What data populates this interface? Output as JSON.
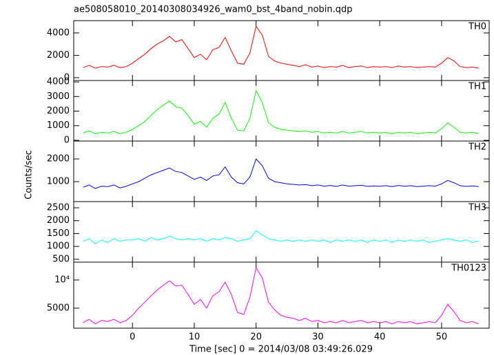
{
  "chart_data": {
    "type": "line",
    "title": "ae508058010_20140308034926_wam0_bst_4band_nobin.qdp",
    "xlabel": "Time [sec] 0 = 2014/03/08 03:49:26.029",
    "ylabel": "Counts/sec",
    "xlim": [
      -9.5,
      57.7
    ],
    "xticks": [
      0,
      10,
      20,
      30,
      40,
      50
    ],
    "x": [
      -8,
      -7,
      -6,
      -5,
      -4,
      -3,
      -2,
      -1,
      0,
      1,
      2,
      3,
      4,
      5,
      6,
      7,
      8,
      9,
      10,
      11,
      12,
      13,
      14,
      15,
      16,
      17,
      18,
      19,
      20,
      21,
      22,
      23,
      24,
      25,
      26,
      27,
      28,
      29,
      30,
      31,
      32,
      33,
      34,
      35,
      36,
      37,
      38,
      39,
      40,
      41,
      42,
      43,
      44,
      45,
      46,
      47,
      48,
      49,
      50,
      51,
      52,
      53,
      54,
      55,
      56
    ],
    "series": [
      {
        "name": "TH0",
        "color": "#ff0000",
        "ylim": [
          -250,
          5100
        ],
        "yticks": [
          0,
          2000,
          4000
        ],
        "values": [
          900,
          1100,
          850,
          1000,
          950,
          1100,
          900,
          1000,
          1300,
          1700,
          2100,
          2600,
          3000,
          3300,
          3700,
          3200,
          3400,
          2600,
          1800,
          2100,
          1600,
          2500,
          2700,
          3600,
          2400,
          1300,
          1200,
          2200,
          4600,
          3800,
          1900,
          1500,
          1300,
          1200,
          1100,
          1000,
          1150,
          950,
          1050,
          900,
          1000,
          950,
          1100,
          900,
          1000,
          1050,
          900,
          1000,
          950,
          1000,
          900,
          1050,
          950,
          1000,
          900,
          950,
          1000,
          950,
          1300,
          1800,
          1500,
          1000,
          900,
          950,
          850
        ]
      },
      {
        "name": "TH1",
        "color": "#00ff00",
        "ylim": [
          -50,
          4100
        ],
        "yticks": [
          0,
          1000,
          2000,
          3000,
          4000
        ],
        "values": [
          500,
          650,
          450,
          550,
          500,
          600,
          450,
          550,
          750,
          1000,
          1300,
          1700,
          2100,
          2400,
          2700,
          2300,
          2200,
          1700,
          1100,
          1300,
          900,
          1500,
          1800,
          2600,
          1500,
          700,
          650,
          1500,
          3400,
          2600,
          1200,
          900,
          750,
          700,
          650,
          600,
          650,
          550,
          600,
          500,
          550,
          500,
          600,
          500,
          550,
          600,
          500,
          550,
          500,
          550,
          450,
          550,
          500,
          550,
          450,
          500,
          550,
          500,
          800,
          1200,
          900,
          550,
          500,
          550,
          450
        ]
      },
      {
        "name": "TH2",
        "color": "#0000ff",
        "ylim": [
          120,
          2790
        ],
        "yticks": [
          1000,
          2000
        ],
        "values": [
          750,
          850,
          700,
          800,
          780,
          850,
          720,
          800,
          900,
          1000,
          1150,
          1300,
          1400,
          1500,
          1600,
          1450,
          1400,
          1250,
          1100,
          1200,
          1050,
          1250,
          1300,
          1650,
          1200,
          950,
          900,
          1200,
          2000,
          1700,
          1150,
          1000,
          950,
          900,
          880,
          850,
          870,
          820,
          850,
          800,
          830,
          790,
          850,
          800,
          820,
          840,
          790,
          810,
          800,
          820,
          780,
          830,
          800,
          820,
          780,
          800,
          820,
          800,
          900,
          1050,
          950,
          820,
          790,
          810,
          780
        ]
      },
      {
        "name": "TH3",
        "color": "#00ffff",
        "ylim": [
          390,
          2740
        ],
        "yticks": [
          500,
          1000,
          1500,
          2000,
          2500
        ],
        "values": [
          1200,
          1300,
          1100,
          1250,
          1150,
          1300,
          1200,
          1250,
          1250,
          1300,
          1200,
          1350,
          1250,
          1300,
          1400,
          1300,
          1250,
          1300,
          1250,
          1300,
          1200,
          1300,
          1250,
          1350,
          1300,
          1200,
          1250,
          1300,
          1600,
          1450,
          1300,
          1250,
          1200,
          1250,
          1200,
          1250,
          1200,
          1250,
          1200,
          1250,
          1150,
          1250,
          1200,
          1250,
          1200,
          1250,
          1150,
          1250,
          1200,
          1250,
          1150,
          1250,
          1200,
          1250,
          1200,
          1250,
          1150,
          1200,
          1250,
          1300,
          1250,
          1200,
          1250,
          1150,
          1200
        ]
      },
      {
        "name": "TH0123",
        "color": "#ff00ff",
        "log": true,
        "ylim": [
          3060,
          15500
        ],
        "yticks": [
          {
            "value": 10000,
            "label": "10⁴"
          },
          5000
        ],
        "values": [
          3500,
          3800,
          3400,
          3700,
          3600,
          3800,
          3500,
          3700,
          4200,
          5000,
          5800,
          6800,
          7800,
          8800,
          9800,
          8600,
          8800,
          7000,
          5500,
          6200,
          5000,
          6800,
          7500,
          9500,
          7000,
          4500,
          4300,
          6500,
          13500,
          10500,
          5800,
          4800,
          4200,
          4000,
          3900,
          3700,
          3900,
          3600,
          3700,
          3500,
          3600,
          3500,
          3700,
          3500,
          3600,
          3700,
          3500,
          3600,
          3500,
          3600,
          3400,
          3600,
          3500,
          3600,
          3400,
          3500,
          3600,
          3500,
          4200,
          5500,
          4600,
          3700,
          3500,
          3600,
          3400
        ]
      }
    ]
  }
}
